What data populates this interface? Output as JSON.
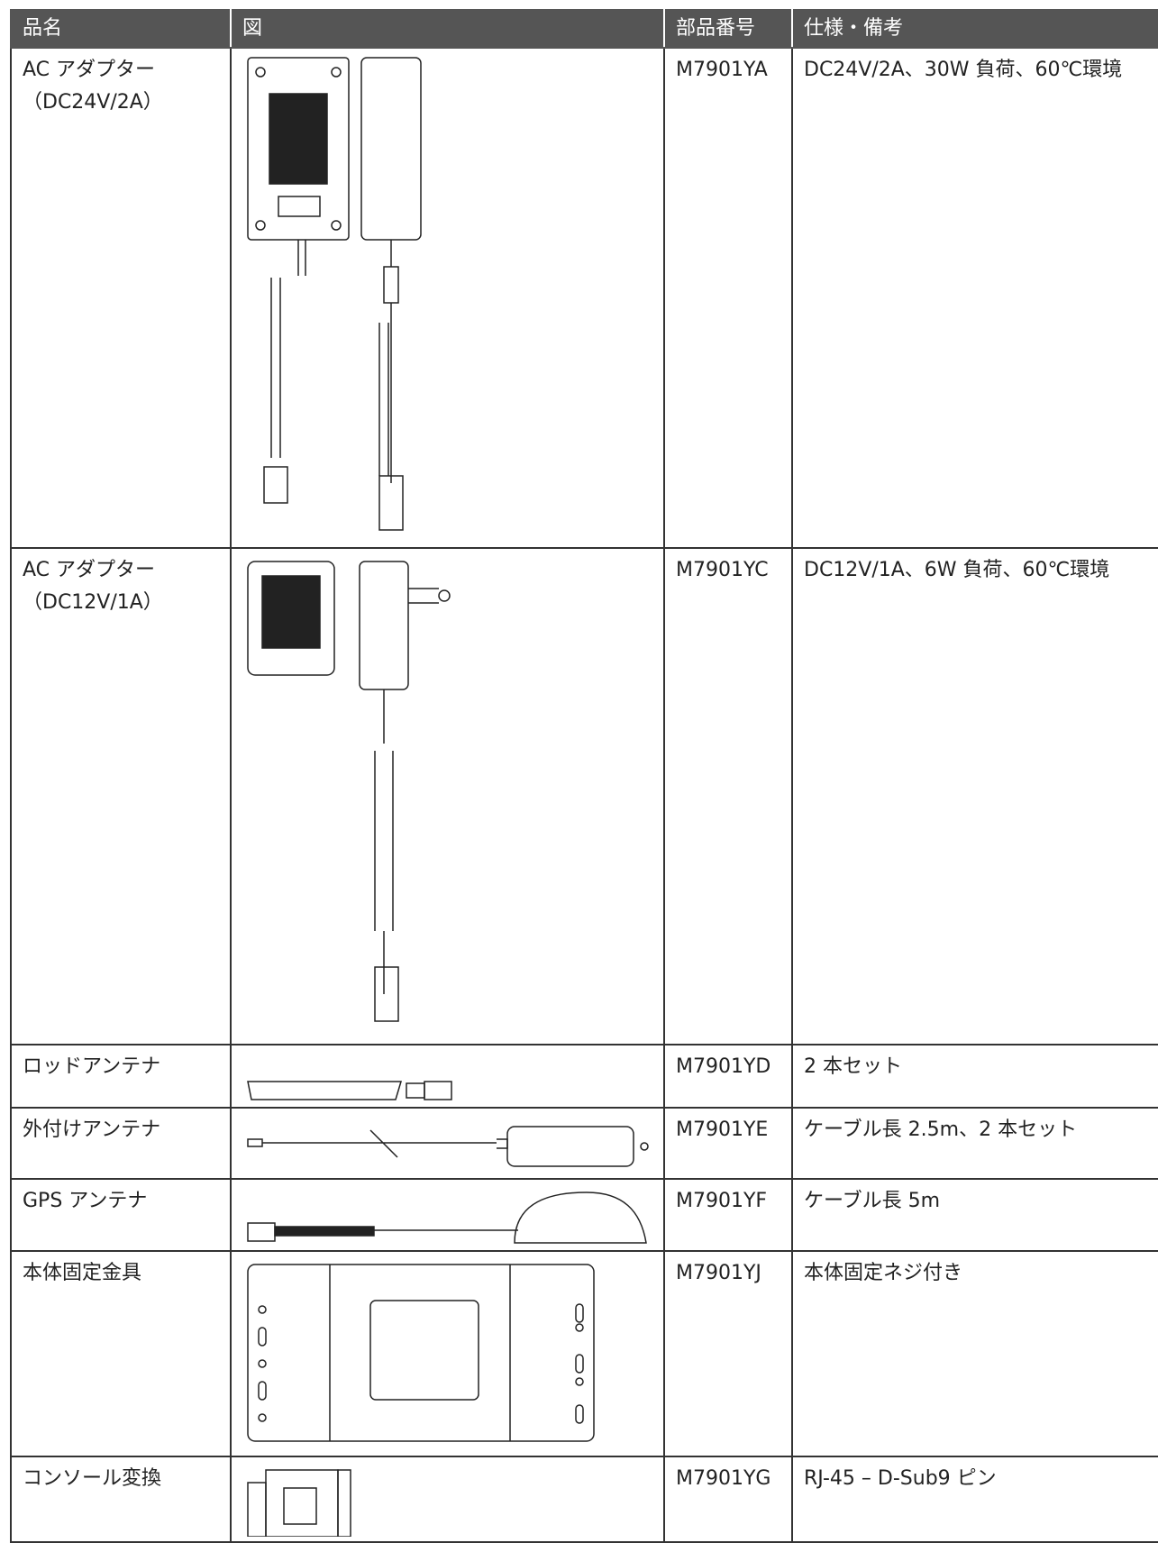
{
  "table": {
    "header": [
      "品名",
      "図",
      "部品番号",
      "仕様・備考"
    ],
    "rows": [
      {
        "name": [
          "AC アダプター",
          "（DC24V/2A）"
        ],
        "part": "M7901YA",
        "spec": "DC24V/2A、30W 負荷、60℃環境"
      },
      {
        "name": [
          "AC アダプター",
          "（DC12V/1A）"
        ],
        "part": "M7901YC",
        "spec": "DC12V/1A、6W 負荷、60℃環境"
      },
      {
        "name": [
          "ロッドアンテナ"
        ],
        "part": "M7901YD",
        "spec": "2 本セット"
      },
      {
        "name": [
          "外付けアンテナ"
        ],
        "part": "M7901YE",
        "spec": "ケーブル長 2.5m、2 本セット"
      },
      {
        "name": [
          "GPS アンテナ"
        ],
        "part": "M7901YF",
        "spec": "ケーブル長 5m"
      },
      {
        "name": [
          "本体固定金具"
        ],
        "part": "M7901YJ",
        "spec": "本体固定ネジ付き"
      },
      {
        "name": [
          "コンソール変換"
        ],
        "part": "M7901YG",
        "spec": "RJ-45 – D-Sub9 ピン"
      }
    ]
  }
}
